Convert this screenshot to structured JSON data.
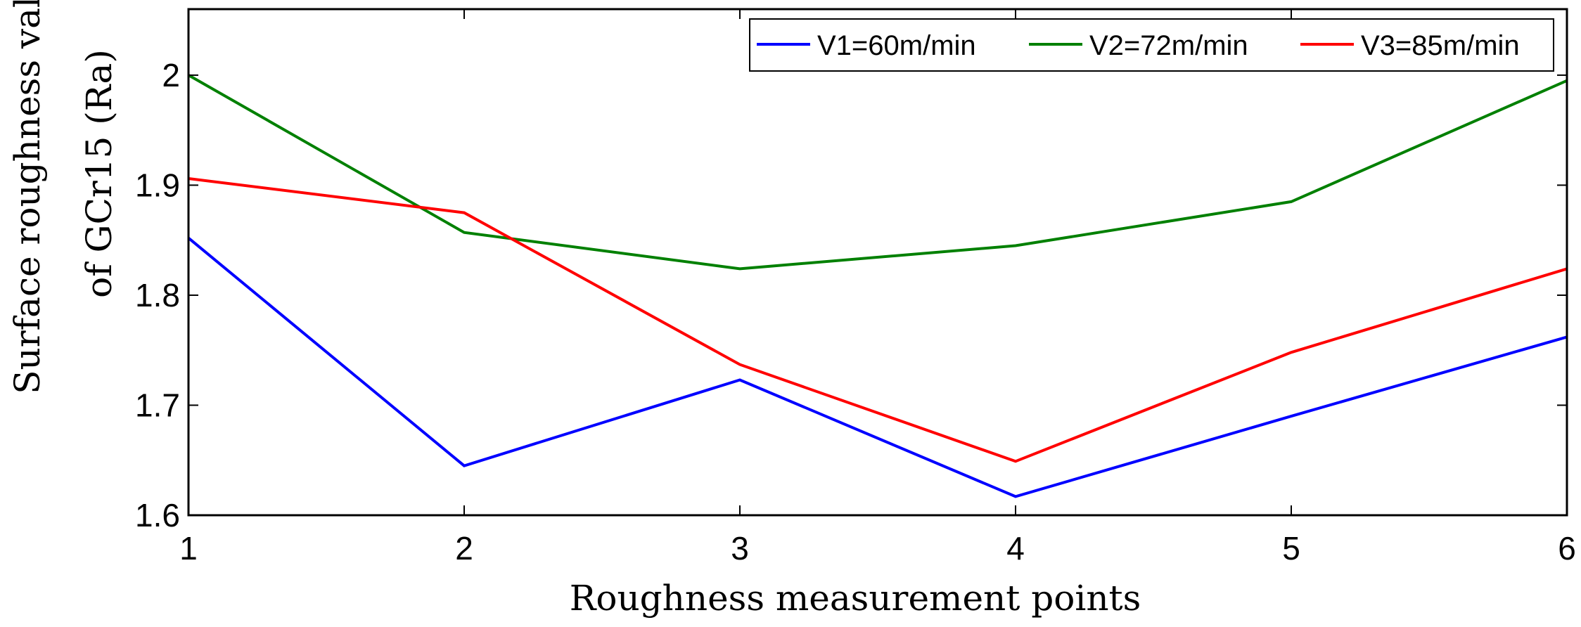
{
  "chart_data": {
    "type": "line",
    "title": "",
    "xlabel": "Roughness measurement points",
    "ylabel_line1": "Surface roughness value",
    "ylabel_line2": "of GCr15 (Ra)",
    "x": [
      1,
      2,
      3,
      4,
      5,
      6
    ],
    "xlim": [
      1,
      6
    ],
    "ylim": [
      1.6,
      2.06
    ],
    "xticks": [
      "1",
      "2",
      "3",
      "4",
      "5",
      "6"
    ],
    "yticks": [
      "1.6",
      "1.7",
      "1.8",
      "1.9",
      "2"
    ],
    "ytick_values": [
      1.6,
      1.7,
      1.8,
      1.9,
      2.0
    ],
    "grid": false,
    "legend_position": "top-right",
    "series": [
      {
        "name": "V1=60m/min",
        "color": "#0000ff",
        "values": [
          1.852,
          1.645,
          1.723,
          1.617,
          1.69,
          1.762
        ]
      },
      {
        "name": "V2=72m/min",
        "color": "#008000",
        "values": [
          2.0,
          1.857,
          1.824,
          1.845,
          1.885,
          1.995
        ]
      },
      {
        "name": "V3=85m/min",
        "color": "#ff0000",
        "values": [
          1.906,
          1.875,
          1.737,
          1.649,
          1.748,
          1.824
        ]
      }
    ]
  }
}
